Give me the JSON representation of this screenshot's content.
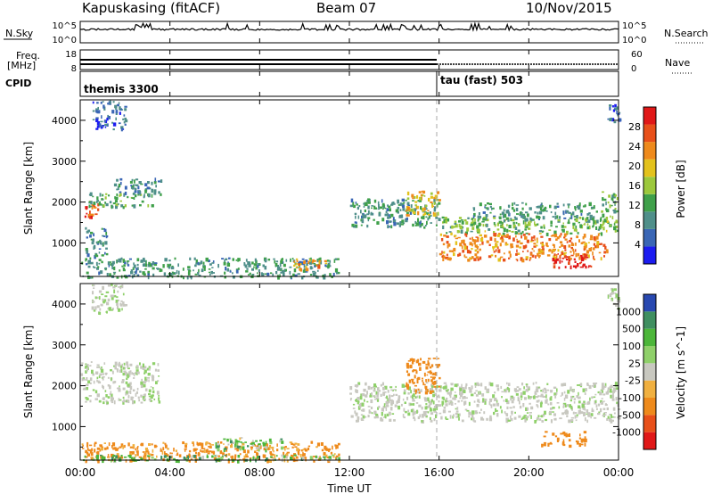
{
  "header": {
    "station": "Kapuskasing (fitACF)",
    "beam": "Beam 07",
    "date": "10/Nov/2015"
  },
  "strip_panels": {
    "nsky": {
      "label": "N.Sky",
      "ticks": [
        "10^5",
        "10^0"
      ],
      "right_label": "N.Search",
      "right_ticks": [
        "10^5",
        "10^0"
      ]
    },
    "freq": {
      "label_lines": [
        "Freq.",
        "[MHz]"
      ],
      "ticks": [
        "18",
        "8"
      ],
      "right_label": "Nave",
      "right_ticks": [
        "60",
        "0"
      ]
    },
    "cpid": {
      "label": "CPID",
      "modes": [
        "themis 3300",
        "tau (fast) 503"
      ]
    }
  },
  "x_axis": {
    "label": "Time UT",
    "ticks": [
      "00:00",
      "04:00",
      "08:00",
      "12:00",
      "16:00",
      "20:00",
      "00:00"
    ]
  },
  "colors": {
    "power": [
      "#1c1cf0",
      "#3a66b5",
      "#4f8f8a",
      "#3fa04a",
      "#9cc83c",
      "#e3c21c",
      "#ee8a1c",
      "#e8501a",
      "#e01818"
    ],
    "velocity_neg": [
      "#e01818",
      "#e8501a",
      "#ee8a1c",
      "#f0b040"
    ],
    "velocity_mid": "#c8c8c0",
    "velocity_pos": [
      "#8fd06a",
      "#4cb63a",
      "#3f8f60",
      "#2848b0"
    ],
    "ground": "#8a8a8a"
  },
  "chart_data": [
    {
      "type": "heatmap",
      "title": "",
      "xlabel": "Time UT",
      "ylabel": "Slant Range [km]",
      "x_range_hours": [
        0,
        24
      ],
      "ylim": [
        180,
        4500
      ],
      "y_ticks": [
        1000,
        2000,
        3000,
        4000
      ],
      "colorbar": {
        "label": "Power [dB]",
        "range": [
          0,
          32
        ],
        "ticks": [
          "4",
          "8",
          "12",
          "16",
          "20",
          "24",
          "28"
        ]
      },
      "echo_regions": [
        {
          "t": [
            0.0,
            0.8
          ],
          "r": [
            1650,
            2050
          ],
          "level": 26
        },
        {
          "t": [
            0.3,
            3.2
          ],
          "r": [
            1900,
            2250
          ],
          "level": 12
        },
        {
          "t": [
            1.5,
            3.6
          ],
          "r": [
            2200,
            2600
          ],
          "level": 8
        },
        {
          "t": [
            0.5,
            2.0
          ],
          "r": [
            3800,
            4500
          ],
          "level": 6
        },
        {
          "t": [
            0.2,
            1.2
          ],
          "r": [
            700,
            1400
          ],
          "level": 9
        },
        {
          "t": [
            0.0,
            11.5
          ],
          "r": [
            180,
            650
          ],
          "level": 10
        },
        {
          "t": [
            9.5,
            11.0
          ],
          "r": [
            350,
            650
          ],
          "level": 22
        },
        {
          "t": [
            12.0,
            16.0
          ],
          "r": [
            1400,
            2100
          ],
          "level": 10
        },
        {
          "t": [
            14.5,
            16.0
          ],
          "r": [
            1700,
            2300
          ],
          "level": 20
        },
        {
          "t": [
            16.0,
            24.0
          ],
          "r": [
            1250,
            1650
          ],
          "level": 14
        },
        {
          "t": [
            16.0,
            23.5
          ],
          "r": [
            600,
            1250
          ],
          "level": 24
        },
        {
          "t": [
            17.5,
            23.0
          ],
          "r": [
            1600,
            2000
          ],
          "level": 10
        },
        {
          "t": [
            21.0,
            22.8
          ],
          "r": [
            400,
            750
          ],
          "level": 30
        },
        {
          "t": [
            23.2,
            24.0
          ],
          "r": [
            1600,
            2300
          ],
          "level": 12
        },
        {
          "t": [
            23.5,
            24.0
          ],
          "r": [
            3900,
            4400
          ],
          "level": 6
        }
      ]
    },
    {
      "type": "heatmap",
      "title": "",
      "xlabel": "Time UT",
      "ylabel": "Slant Range [km]",
      "x_range_hours": [
        0,
        24
      ],
      "ylim": [
        180,
        4500
      ],
      "y_ticks": [
        1000,
        2000,
        3000,
        4000
      ],
      "colorbar": {
        "label": "Velocity [m s^-1]",
        "range": [
          -1200,
          1200
        ],
        "ticks": [
          "1000",
          "500",
          "100",
          "25",
          "-25",
          "-100",
          "-500",
          "-1000"
        ]
      },
      "echo_regions": [
        {
          "t": [
            0.0,
            3.5
          ],
          "r": [
            1600,
            2600
          ],
          "velocity": 0
        },
        {
          "t": [
            0.5,
            2.0
          ],
          "r": [
            3800,
            4500
          ],
          "velocity": 0
        },
        {
          "t": [
            0.0,
            11.5
          ],
          "r": [
            180,
            650
          ],
          "velocity": -150
        },
        {
          "t": [
            0.0,
            11.5
          ],
          "r": [
            180,
            320
          ],
          "velocity": 60
        },
        {
          "t": [
            6.0,
            9.0
          ],
          "r": [
            450,
            750
          ],
          "velocity": 40
        },
        {
          "t": [
            12.0,
            24.0
          ],
          "r": [
            1150,
            2100
          ],
          "velocity": 0
        },
        {
          "t": [
            14.5,
            16.0
          ],
          "r": [
            1800,
            2700
          ],
          "velocity": -300
        },
        {
          "t": [
            20.5,
            22.5
          ],
          "r": [
            550,
            900
          ],
          "velocity": -200
        },
        {
          "t": [
            23.5,
            24.0
          ],
          "r": [
            3900,
            4400
          ],
          "velocity": 0
        }
      ]
    }
  ]
}
